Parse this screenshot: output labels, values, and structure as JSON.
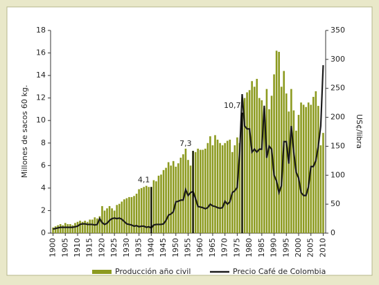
{
  "chart_data": {
    "type": "bar_line",
    "y_label": "Millones de sacos 60 kg.",
    "y2_label": "US¢/libra",
    "x": [
      1900,
      1901,
      1902,
      1903,
      1904,
      1905,
      1906,
      1907,
      1908,
      1909,
      1910,
      1911,
      1912,
      1913,
      1914,
      1915,
      1916,
      1917,
      1918,
      1919,
      1920,
      1921,
      1922,
      1923,
      1924,
      1925,
      1926,
      1927,
      1928,
      1929,
      1930,
      1931,
      1932,
      1933,
      1934,
      1935,
      1936,
      1937,
      1938,
      1939,
      1940,
      1941,
      1942,
      1943,
      1944,
      1945,
      1946,
      1947,
      1948,
      1949,
      1950,
      1951,
      1952,
      1953,
      1954,
      1955,
      1956,
      1957,
      1958,
      1959,
      1960,
      1961,
      1962,
      1963,
      1964,
      1965,
      1966,
      1967,
      1968,
      1969,
      1970,
      1971,
      1972,
      1973,
      1974,
      1975,
      1976,
      1977,
      1978,
      1979,
      1980,
      1981,
      1982,
      1983,
      1984,
      1985,
      1986,
      1987,
      1988,
      1989,
      1990,
      1991,
      1992,
      1993,
      1994,
      1995,
      1996,
      1997,
      1998,
      1999,
      2000,
      2001,
      2002,
      2003,
      2004,
      2005,
      2006,
      2007,
      2008,
      2009,
      2010
    ],
    "series": [
      {
        "name": "Producción año civil",
        "color": "#8c9a1f",
        "kind": "bar",
        "values": [
          0.5,
          0.6,
          0.7,
          0.8,
          0.7,
          0.9,
          0.8,
          0.8,
          0.7,
          0.9,
          1.0,
          1.1,
          1.0,
          1.1,
          1.0,
          1.2,
          1.2,
          1.4,
          1.3,
          1.5,
          2.4,
          2.0,
          2.2,
          2.4,
          2.2,
          2.0,
          2.5,
          2.6,
          2.8,
          3.0,
          3.1,
          3.2,
          3.2,
          3.3,
          3.5,
          3.9,
          4.0,
          4.1,
          4.2,
          4.1,
          4.1,
          4.7,
          4.6,
          5.1,
          5.2,
          5.6,
          5.8,
          6.3,
          6.0,
          6.4,
          5.9,
          6.2,
          6.7,
          7.0,
          7.5,
          6.5,
          6.0,
          7.3,
          7.2,
          7.5,
          7.4,
          7.4,
          7.5,
          8.0,
          8.6,
          7.8,
          8.7,
          8.3,
          8.0,
          7.8,
          8.0,
          8.2,
          8.3,
          7.2,
          7.8,
          8.5,
          8.0,
          10.7,
          12.0,
          12.5,
          12.7,
          13.5,
          13.0,
          13.7,
          12.0,
          11.8,
          11.1,
          12.8,
          11.0,
          12.2,
          14.1,
          16.2,
          16.1,
          13.0,
          14.4,
          12.4,
          10.8,
          12.8,
          10.9,
          9.1,
          10.5,
          11.6,
          11.4,
          11.2,
          11.6,
          11.4,
          12.1,
          12.6,
          11.3,
          7.8,
          8.9
        ]
      },
      {
        "name": "Precio Café de Colombia",
        "color": "#1a1a1a",
        "kind": "line",
        "axis": "y2",
        "values": [
          7,
          8,
          9,
          10,
          10,
          10,
          10,
          10,
          10,
          11,
          12,
          15,
          16,
          16,
          15,
          15,
          15,
          14,
          15,
          25,
          18,
          15,
          17,
          22,
          25,
          26,
          25,
          26,
          24,
          20,
          16,
          15,
          14,
          12,
          13,
          11,
          12,
          12,
          10,
          11,
          9,
          14,
          15,
          15,
          15,
          16,
          22,
          31,
          33,
          37,
          54,
          55,
          57,
          57,
          75,
          65,
          70,
          72,
          60,
          46,
          45,
          44,
          42,
          44,
          50,
          47,
          46,
          44,
          43,
          44,
          55,
          50,
          54,
          70,
          73,
          79,
          140,
          240,
          185,
          180,
          180,
          140,
          145,
          140,
          145,
          145,
          220,
          130,
          150,
          145,
          100,
          90,
          70,
          82,
          158,
          158,
          120,
          185,
          140,
          105,
          95,
          70,
          65,
          65,
          80,
          115,
          115,
          125,
          150,
          185,
          290
        ]
      }
    ],
    "annotations": [
      {
        "x": 1940,
        "y": 4.1,
        "label": "4,1"
      },
      {
        "x": 1957,
        "y": 7.3,
        "label": "7,3"
      },
      {
        "x": 1977,
        "y": 10.7,
        "label": "10,7"
      }
    ],
    "xlim": [
      1899,
      2011
    ],
    "xticks": [
      1900,
      1905,
      1910,
      1915,
      1920,
      1925,
      1930,
      1935,
      1940,
      1945,
      1950,
      1955,
      1960,
      1965,
      1970,
      1975,
      1980,
      1985,
      1990,
      1995,
      2000,
      2005,
      2010
    ],
    "ylim": [
      0,
      18
    ],
    "yticks": [
      0,
      2,
      4,
      6,
      8,
      10,
      12,
      14,
      16,
      18
    ],
    "y2lim": [
      0,
      350
    ],
    "y2ticks": [
      0,
      50,
      100,
      150,
      200,
      250,
      300,
      350
    ]
  }
}
